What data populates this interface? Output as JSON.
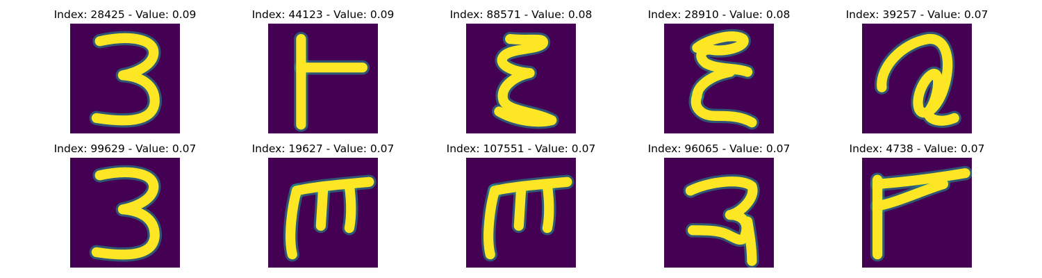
{
  "colors": {
    "background": "#440154",
    "stroke": "#fde725"
  },
  "panels": [
    {
      "title": "Index: 28425 - Value: 0.09",
      "glyph": "3"
    },
    {
      "title": "Index: 44123 - Value: 0.09",
      "glyph": "T-sideways"
    },
    {
      "title": "Index: 88571 - Value: 0.08",
      "glyph": "E-curly"
    },
    {
      "title": "Index: 28910 - Value: 0.08",
      "glyph": "E-loopy"
    },
    {
      "title": "Index: 39257 - Value: 0.07",
      "glyph": "a-loop"
    },
    {
      "title": "Index: 99629 - Value: 0.07",
      "glyph": "3"
    },
    {
      "title": "Index: 19627 - Value: 0.07",
      "glyph": "m-rotated"
    },
    {
      "title": "Index: 107551 - Value: 0.07",
      "glyph": "m-rotated"
    },
    {
      "title": "Index: 96065 - Value: 0.07",
      "glyph": "2-curved"
    },
    {
      "title": "Index: 4738 - Value: 0.07",
      "glyph": "7-rotated"
    }
  ]
}
